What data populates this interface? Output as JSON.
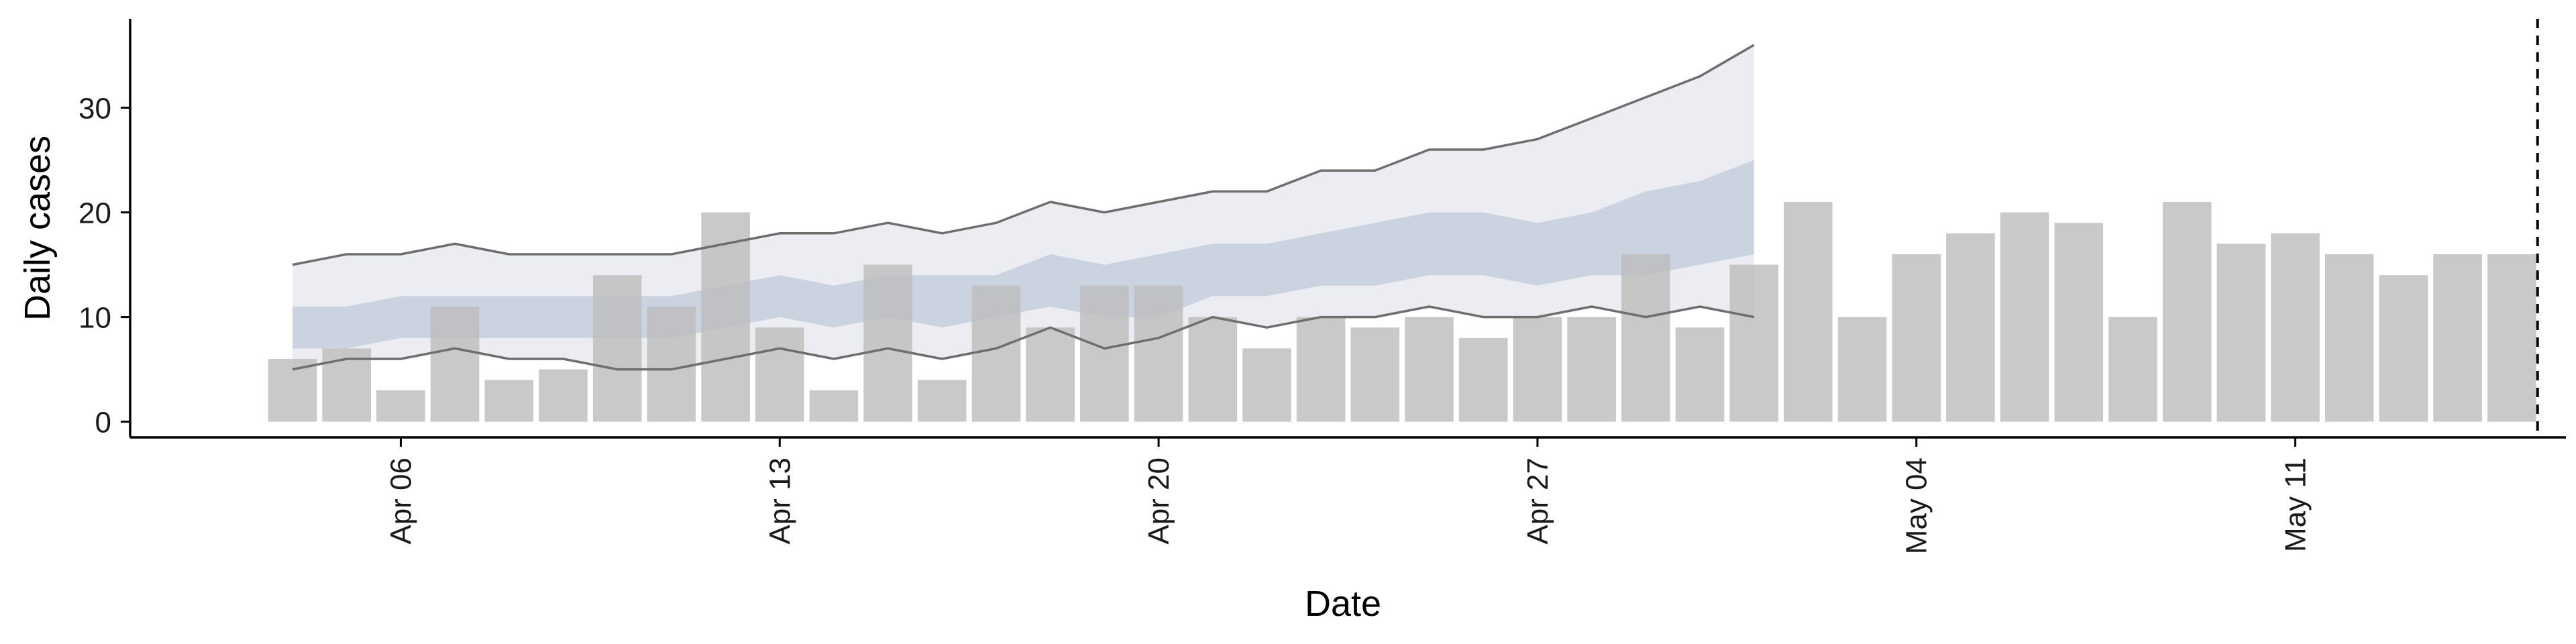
{
  "chart_data": {
    "type": "bar",
    "xlabel": "Date",
    "ylabel": "Daily cases",
    "x_tick_labels": [
      "Apr 06",
      "Apr 13",
      "Apr 20",
      "Apr 27",
      "May 04",
      "May 11"
    ],
    "y_tick_labels": [
      "0",
      "10",
      "20",
      "30"
    ],
    "ylim": [
      -1.5,
      38.5
    ],
    "xlim": [
      "2020-04-01",
      "2020-05-16"
    ],
    "grid": false,
    "legend": "none",
    "dates": [
      "2020-04-04",
      "2020-04-05",
      "2020-04-06",
      "2020-04-07",
      "2020-04-08",
      "2020-04-09",
      "2020-04-10",
      "2020-04-11",
      "2020-04-12",
      "2020-04-13",
      "2020-04-14",
      "2020-04-15",
      "2020-04-16",
      "2020-04-17",
      "2020-04-18",
      "2020-04-19",
      "2020-04-20",
      "2020-04-21",
      "2020-04-22",
      "2020-04-23",
      "2020-04-24",
      "2020-04-25",
      "2020-04-26",
      "2020-04-27",
      "2020-04-28",
      "2020-04-29",
      "2020-04-30",
      "2020-05-01",
      "2020-05-02",
      "2020-05-03",
      "2020-05-04",
      "2020-05-05",
      "2020-05-06",
      "2020-05-07",
      "2020-05-08",
      "2020-05-09",
      "2020-05-10",
      "2020-05-11",
      "2020-05-12",
      "2020-05-13",
      "2020-05-14",
      "2020-05-15"
    ],
    "daily_cases": [
      6,
      7,
      3,
      11,
      4,
      5,
      14,
      11,
      20,
      9,
      3,
      15,
      4,
      13,
      9,
      13,
      13,
      10,
      7,
      10,
      9,
      10,
      8,
      10,
      10,
      16,
      9,
      15,
      21,
      10,
      16,
      18,
      20,
      19,
      10,
      21,
      17,
      18,
      16,
      14,
      16,
      16
    ],
    "forecast": {
      "dates": [
        "2020-04-04",
        "2020-04-05",
        "2020-04-06",
        "2020-04-07",
        "2020-04-08",
        "2020-04-09",
        "2020-04-10",
        "2020-04-11",
        "2020-04-12",
        "2020-04-13",
        "2020-04-14",
        "2020-04-15",
        "2020-04-16",
        "2020-04-17",
        "2020-04-18",
        "2020-04-19",
        "2020-04-20",
        "2020-04-21",
        "2020-04-22",
        "2020-04-23",
        "2020-04-24",
        "2020-04-25",
        "2020-04-26",
        "2020-04-27",
        "2020-04-28",
        "2020-04-29",
        "2020-04-30",
        "2020-05-01"
      ],
      "outer_lower": [
        5,
        6,
        6,
        7,
        6,
        6,
        5,
        5,
        6,
        7,
        6,
        7,
        6,
        7,
        9,
        7,
        8,
        10,
        9,
        10,
        10,
        11,
        10,
        10,
        11,
        10,
        11,
        10
      ],
      "outer_upper": [
        15,
        16,
        16,
        17,
        16,
        16,
        16,
        16,
        17,
        18,
        18,
        19,
        18,
        19,
        21,
        20,
        21,
        22,
        22,
        24,
        24,
        26,
        26,
        27,
        29,
        31,
        33,
        36
      ],
      "inner_lower": [
        7,
        7,
        8,
        8,
        8,
        8,
        8,
        8,
        9,
        10,
        9,
        10,
        9,
        10,
        11,
        10,
        10,
        12,
        12,
        13,
        13,
        14,
        14,
        13,
        14,
        14,
        15,
        16
      ],
      "inner_upper": [
        11,
        11,
        12,
        12,
        12,
        12,
        12,
        12,
        13,
        14,
        13,
        14,
        14,
        14,
        16,
        15,
        16,
        17,
        17,
        18,
        19,
        20,
        20,
        19,
        20,
        22,
        23,
        25
      ]
    },
    "vertical_marker_date": "2020-05-15",
    "colors": {
      "bars": "#bdbdbd",
      "outer_band": "#e8eaf0",
      "inner_band": "#c0c8da",
      "outer_lines": "#6e6e6e",
      "marker_line": "#000000"
    }
  }
}
